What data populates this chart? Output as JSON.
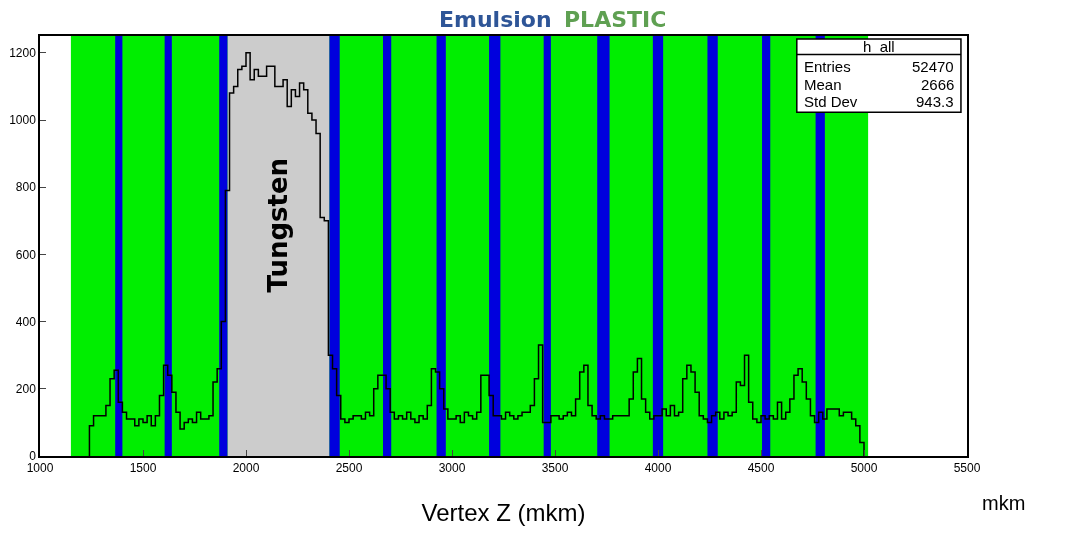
{
  "chart_data": {
    "type": "histogram",
    "title": "Emulsion",
    "subtitle": "PLASTIC",
    "xlabel": "Vertex Z (mkm)",
    "bins": [
      1240,
      1260,
      1280,
      1300,
      1320,
      1340,
      1360,
      1380,
      1400,
      1420,
      1440,
      1460,
      1480,
      1500,
      1520,
      1540,
      1560,
      1580,
      1600,
      1620,
      1640,
      1660,
      1680,
      1700,
      1720,
      1740,
      1760,
      1780,
      1800,
      1820,
      1840,
      1860,
      1880,
      1900,
      1920,
      1940,
      1960,
      1980,
      2000,
      2020,
      2040,
      2060,
      2080,
      2100,
      2120,
      2140,
      2160,
      2180,
      2200,
      2220,
      2240,
      2260,
      2280,
      2300,
      2320,
      2340,
      2360,
      2380,
      2400,
      2420,
      2440,
      2460,
      2480,
      2500,
      2520,
      2540,
      2560,
      2580,
      2600,
      2620,
      2640,
      2660,
      2680,
      2700,
      2720,
      2740,
      2760,
      2780,
      2800,
      2820,
      2840,
      2860,
      2880,
      2900,
      2920,
      2940,
      2960,
      2980,
      3000,
      3020,
      3040,
      3060,
      3080,
      3100,
      3120,
      3140,
      3160,
      3180,
      3200,
      3220,
      3240,
      3260,
      3280,
      3300,
      3320,
      3340,
      3360,
      3380,
      3400,
      3420,
      3440,
      3460,
      3480,
      3500,
      3520,
      3540,
      3560,
      3580,
      3600,
      3620,
      3640,
      3660,
      3680,
      3700,
      3720,
      3740,
      3760,
      3780,
      3800,
      3820,
      3840,
      3860,
      3880,
      3900,
      3920,
      3940,
      3960,
      3980,
      4000,
      4020,
      4040,
      4060,
      4080,
      4100,
      4120,
      4140,
      4160,
      4180,
      4200,
      4220,
      4240,
      4260,
      4280,
      4300,
      4320,
      4340,
      4360,
      4380,
      4400,
      4420,
      4440,
      4460,
      4480,
      4500,
      4520,
      4540,
      4560,
      4580,
      4600,
      4620,
      4640,
      4660,
      4680,
      4700,
      4720,
      4740,
      4760,
      4780,
      4800,
      4820,
      4840,
      4860,
      4880,
      4900,
      4920,
      4940,
      4960,
      4980,
      5000
    ],
    "values": [
      90,
      120,
      120,
      120,
      150,
      230,
      255,
      160,
      130,
      110,
      110,
      90,
      110,
      100,
      120,
      90,
      120,
      180,
      270,
      240,
      190,
      130,
      80,
      100,
      110,
      100,
      130,
      110,
      110,
      120,
      220,
      260,
      400,
      790,
      1080,
      1100,
      1150,
      1160,
      1200,
      1120,
      1150,
      1130,
      1130,
      1160,
      1160,
      1100,
      1100,
      1120,
      1040,
      1090,
      1070,
      1110,
      1090,
      1020,
      1000,
      960,
      710,
      700,
      300,
      260,
      180,
      110,
      100,
      110,
      120,
      120,
      110,
      130,
      120,
      200,
      240,
      240,
      200,
      130,
      110,
      120,
      110,
      130,
      110,
      100,
      120,
      110,
      150,
      260,
      250,
      200,
      140,
      110,
      110,
      120,
      100,
      130,
      120,
      110,
      130,
      240,
      240,
      180,
      120,
      120,
      110,
      130,
      120,
      110,
      120,
      130,
      130,
      150,
      230,
      330,
      100,
      100,
      120,
      120,
      110,
      120,
      130,
      120,
      170,
      250,
      270,
      150,
      120,
      110,
      120,
      110,
      110,
      120,
      120,
      120,
      120,
      170,
      250,
      290,
      170,
      130,
      110,
      120,
      120,
      140,
      120,
      150,
      120,
      130,
      230,
      270,
      250,
      190,
      120,
      110,
      100,
      120,
      130,
      110,
      130,
      120,
      130,
      220,
      210,
      300,
      160,
      110,
      100,
      120,
      110,
      120,
      110,
      160,
      110,
      130,
      170,
      240,
      260,
      220,
      170,
      120,
      100,
      130,
      110,
      140,
      140,
      140,
      120,
      130,
      130,
      110,
      90,
      40
    ],
    "color": "#000000",
    "xlim": [
      1000,
      5500
    ],
    "xticks": [
      1000,
      1500,
      2000,
      2500,
      3000,
      3500,
      4000,
      4500,
      5000,
      5500
    ],
    "ylim": [
      0,
      1250
    ],
    "yticks": [
      0,
      200,
      400,
      600,
      800,
      1000,
      1200
    ],
    "bands": [
      {
        "axis": "x",
        "from": 1150,
        "to": 5020,
        "color": "#00ee00"
      },
      {
        "axis": "x",
        "from": 1910,
        "to": 2405,
        "color": "#cccccc",
        "label": "Tungsten"
      },
      {
        "axis": "x",
        "from": 1365,
        "to": 1400,
        "color": "#0000dd"
      },
      {
        "axis": "x",
        "from": 1605,
        "to": 1640,
        "color": "#0000dd"
      },
      {
        "axis": "x",
        "from": 1870,
        "to": 1910,
        "color": "#0000dd"
      },
      {
        "axis": "x",
        "from": 2405,
        "to": 2455,
        "color": "#0000dd"
      },
      {
        "axis": "x",
        "from": 2665,
        "to": 2705,
        "color": "#0000dd"
      },
      {
        "axis": "x",
        "from": 2925,
        "to": 2970,
        "color": "#0000dd"
      },
      {
        "axis": "x",
        "from": 3180,
        "to": 3235,
        "color": "#0000dd"
      },
      {
        "axis": "x",
        "from": 3445,
        "to": 3480,
        "color": "#0000dd"
      },
      {
        "axis": "x",
        "from": 3705,
        "to": 3765,
        "color": "#0000dd"
      },
      {
        "axis": "x",
        "from": 3975,
        "to": 4025,
        "color": "#0000dd"
      },
      {
        "axis": "x",
        "from": 4240,
        "to": 4290,
        "color": "#0000dd"
      },
      {
        "axis": "x",
        "from": 4505,
        "to": 4545,
        "color": "#0000dd"
      },
      {
        "axis": "x",
        "from": 4765,
        "to": 4810,
        "color": "#0000dd"
      }
    ],
    "annotations": [
      "mkm",
      "h_all",
      "Entries",
      "52470",
      "Mean",
      "2666",
      "Std Dev",
      "943.3"
    ]
  }
}
